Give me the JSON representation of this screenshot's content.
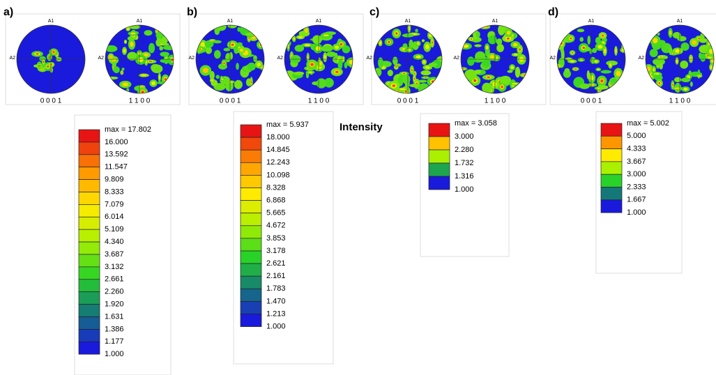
{
  "title": "Intensity",
  "panels": [
    {
      "label": "a)",
      "figures": [
        {
          "top": "A1",
          "left": "A2",
          "caption": "0 0 0 1"
        },
        {
          "top": "A1",
          "left": "A2",
          "caption": "1 1 0 0"
        }
      ],
      "legend": {
        "max": "max = 17.802",
        "levels": [
          "16.000",
          "13.592",
          "11.547",
          "9.809",
          "8.333",
          "7.079",
          "6.014",
          "5.109",
          "4.340",
          "3.687",
          "3.132",
          "2.661",
          "2.260",
          "1.920",
          "1.631",
          "1.386",
          "1.177",
          "1.000"
        ]
      }
    },
    {
      "label": "b)",
      "figures": [
        {
          "top": "A1",
          "left": "A2",
          "caption": "0 0 0 1"
        },
        {
          "top": "A1",
          "left": "A2",
          "caption": "1 1 0 0"
        }
      ],
      "legend": {
        "max": "max = 5.937",
        "levels": [
          "18.000",
          "14.845",
          "12.243",
          "10.098",
          "8.328",
          "6.868",
          "5.665",
          "4.672",
          "3.853",
          "3.178",
          "2.621",
          "2.161",
          "1.783",
          "1.470",
          "1.213",
          "1.000"
        ]
      }
    },
    {
      "label": "c)",
      "figures": [
        {
          "top": "A1",
          "left": "A2",
          "caption": "0 0 0 1"
        },
        {
          "top": "A1",
          "left": "A2",
          "caption": "1 1 0 0"
        }
      ],
      "legend": {
        "max": "max = 3.058",
        "levels": [
          "3.000",
          "2.280",
          "1.732",
          "1.316",
          "1.000"
        ]
      }
    },
    {
      "label": "d)",
      "figures": [
        {
          "top": "A1",
          "left": "A2",
          "caption": "0 0 0 1"
        },
        {
          "top": "A1",
          "left": "A2",
          "caption": "1 1 0 0"
        }
      ],
      "legend": {
        "max": "max = 5.002",
        "levels": [
          "5.000",
          "4.333",
          "3.667",
          "3.000",
          "2.333",
          "1.667",
          "1.000"
        ]
      }
    }
  ]
}
